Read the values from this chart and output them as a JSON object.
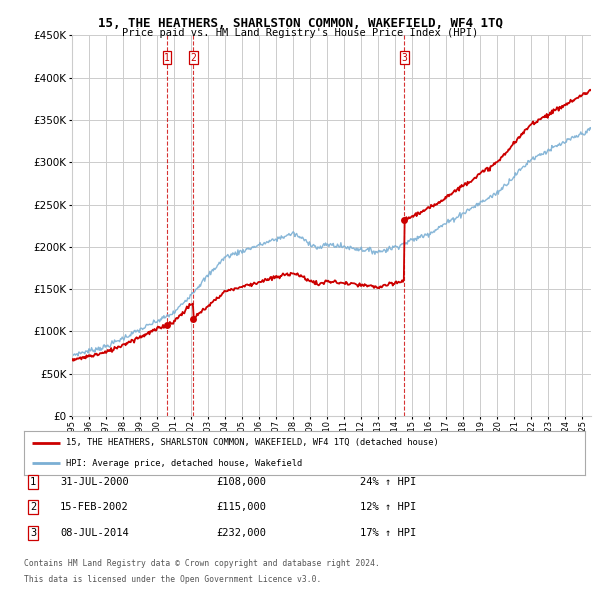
{
  "title": "15, THE HEATHERS, SHARLSTON COMMON, WAKEFIELD, WF4 1TQ",
  "subtitle": "Price paid vs. HM Land Registry's House Price Index (HPI)",
  "legend_property": "15, THE HEATHERS, SHARLSTON COMMON, WAKEFIELD, WF4 1TQ (detached house)",
  "legend_hpi": "HPI: Average price, detached house, Wakefield",
  "footer_line1": "Contains HM Land Registry data © Crown copyright and database right 2024.",
  "footer_line2": "This data is licensed under the Open Government Licence v3.0.",
  "transactions": [
    {
      "num": 1,
      "date": "31-JUL-2000",
      "price": "£108,000",
      "hpi": "24% ↑ HPI",
      "year": 2000.58
    },
    {
      "num": 2,
      "date": "15-FEB-2002",
      "price": "£115,000",
      "hpi": "12% ↑ HPI",
      "year": 2002.12
    },
    {
      "num": 3,
      "date": "08-JUL-2014",
      "price": "£232,000",
      "hpi": "17% ↑ HPI",
      "year": 2014.52
    }
  ],
  "transaction_prices": [
    108000,
    115000,
    232000
  ],
  "ylim": [
    0,
    450000
  ],
  "yticks": [
    0,
    50000,
    100000,
    150000,
    200000,
    250000,
    300000,
    350000,
    400000,
    450000
  ],
  "xmin": 1995,
  "xmax": 2025.5,
  "red_color": "#cc0000",
  "blue_color": "#7bafd4",
  "vline_color": "#cc0000",
  "grid_color": "#cccccc",
  "background_color": "#ffffff"
}
